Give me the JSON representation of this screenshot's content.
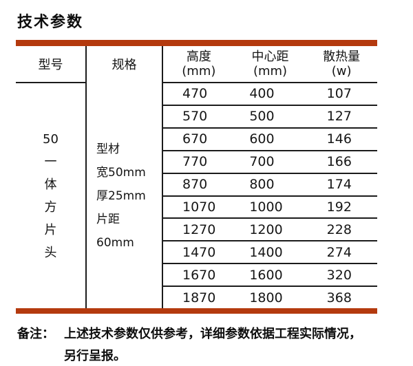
{
  "page": {
    "title": "技术参数",
    "accent_color": "#b43a0e"
  },
  "table": {
    "headers": {
      "model": "型号",
      "spec": "规格",
      "cols": [
        {
          "line1": "高度",
          "line2": "(mm)"
        },
        {
          "line1": "中心距",
          "line2": "(mm)"
        },
        {
          "line1": "散热量",
          "line2": "(w)"
        }
      ]
    },
    "model_lines": [
      "50",
      "一",
      "体",
      "方",
      "片",
      "头"
    ],
    "spec_lines": [
      "型材",
      "宽50mm",
      "厚25mm",
      "片距",
      "60mm"
    ],
    "rows": [
      {
        "height_mm": "470",
        "center_mm": "400",
        "heat_w": "107"
      },
      {
        "height_mm": "570",
        "center_mm": "500",
        "heat_w": "127"
      },
      {
        "height_mm": "670",
        "center_mm": "600",
        "heat_w": "146"
      },
      {
        "height_mm": "770",
        "center_mm": "700",
        "heat_w": "166"
      },
      {
        "height_mm": "870",
        "center_mm": "800",
        "heat_w": "174"
      },
      {
        "height_mm": "1070",
        "center_mm": "1000",
        "heat_w": "192"
      },
      {
        "height_mm": "1270",
        "center_mm": "1200",
        "heat_w": "228"
      },
      {
        "height_mm": "1470",
        "center_mm": "1400",
        "heat_w": "274"
      },
      {
        "height_mm": "1670",
        "center_mm": "1600",
        "heat_w": "320"
      },
      {
        "height_mm": "1870",
        "center_mm": "1800",
        "heat_w": "368"
      }
    ]
  },
  "note": {
    "label": "备注：",
    "line1": "上述技术参数仅供参考，详细参数依据工程实际情况，",
    "line2": "另行呈报。"
  }
}
